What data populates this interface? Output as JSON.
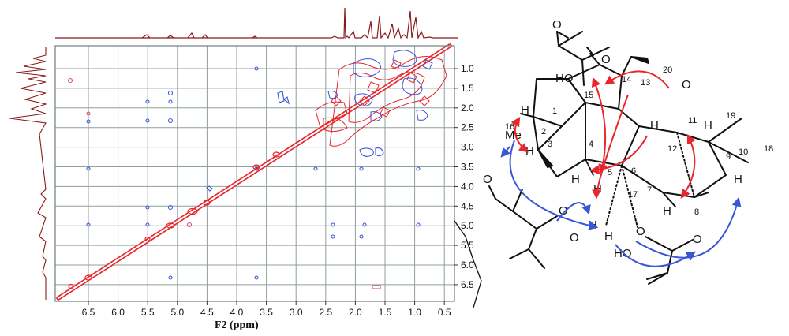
{
  "spectrum": {
    "x_axis": {
      "title": "F2 (ppm)",
      "ticks": [
        "6.5",
        "6.0",
        "5.5",
        "5.0",
        "4.5",
        "4.0",
        "3.5",
        "3.0",
        "2.5",
        "2.0",
        "1.5",
        "1.0",
        "0.5"
      ]
    },
    "y_axis": {
      "ticks": [
        "1.0",
        "1.5",
        "2.0",
        "2.5",
        "3.0",
        "3.5",
        "4.0",
        "4.5",
        "5.0",
        "5.5",
        "6.0",
        "6.5"
      ]
    },
    "colors": {
      "frame": "#6e7f7f",
      "grid": "#8f9f9f",
      "red": "#e8262b",
      "blue": "#3a56d8",
      "projection": "#8b1a1a"
    }
  },
  "structure": {
    "atoms": {
      "ho": "HO",
      "me": "Me",
      "o_ketone": "O",
      "o_acetate_top": "O",
      "o_acetate_top_bridge": "O",
      "o_left_ester": "O",
      "o_left_ester2": "O",
      "o_left_bridge": "O",
      "o_right_bridge": "O",
      "o_right_ester": "O",
      "ho_bottom": "HO",
      "h2": "H",
      "h3": "H",
      "h5": "H",
      "h5b": "H",
      "h11": "H",
      "h12": "H",
      "h7": "H",
      "h9": "H",
      "h17": "H",
      "h_left": "H"
    },
    "numbers": [
      "1",
      "2",
      "3",
      "4",
      "5",
      "6",
      "7",
      "8",
      "9",
      "10",
      "11",
      "12",
      "13",
      "14",
      "15",
      "16",
      "17",
      "18",
      "19",
      "20"
    ],
    "colors": {
      "red_arrow": "#e8262b",
      "blue_arrow": "#3a56d8"
    }
  }
}
